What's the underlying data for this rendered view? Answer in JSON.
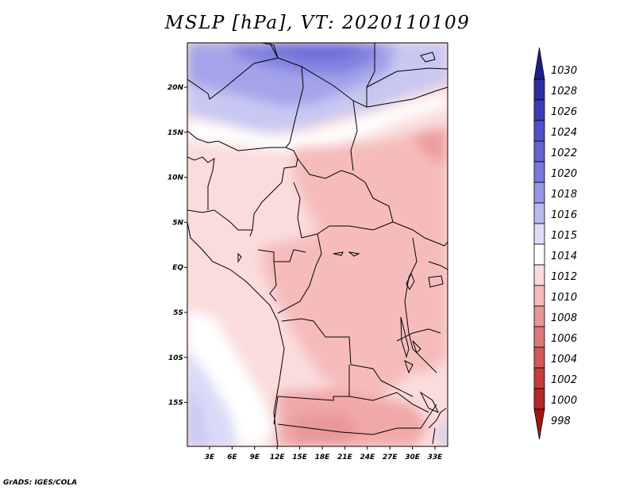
{
  "title": "MSLP [hPa], VT: 2020110109",
  "credit": "GrADS: IGES/COLA",
  "lat_labels": [
    "20N",
    "15N",
    "10N",
    "5N",
    "EQ",
    "5S",
    "10S",
    "15S"
  ],
  "lon_labels": [
    "3E",
    "6E",
    "9E",
    "12E",
    "15E",
    "18E",
    "21E",
    "24E",
    "27E",
    "30E",
    "33E"
  ],
  "colorbar": {
    "levels": [
      "1030",
      "1028",
      "1026",
      "1024",
      "1022",
      "1020",
      "1018",
      "1016",
      "1015",
      "1014",
      "1012",
      "1010",
      "1008",
      "1006",
      "1004",
      "1002",
      "1000",
      "998"
    ],
    "colors": [
      "#1e1e8c",
      "#2d2da5",
      "#3c3cb9",
      "#5050c8",
      "#6464d2",
      "#7878dc",
      "#9696e6",
      "#b9b9f0",
      "#dcdcfa",
      "#ffffff",
      "#fadcdc",
      "#f5b9b9",
      "#e69696",
      "#dc7878",
      "#d25a5a",
      "#c83c3c",
      "#b42828",
      "#a01414"
    ]
  },
  "colors": {
    "high": "#6a6ad8",
    "neutral": "#ffffff",
    "low": "#f2b4b4",
    "coast": "#000000"
  }
}
